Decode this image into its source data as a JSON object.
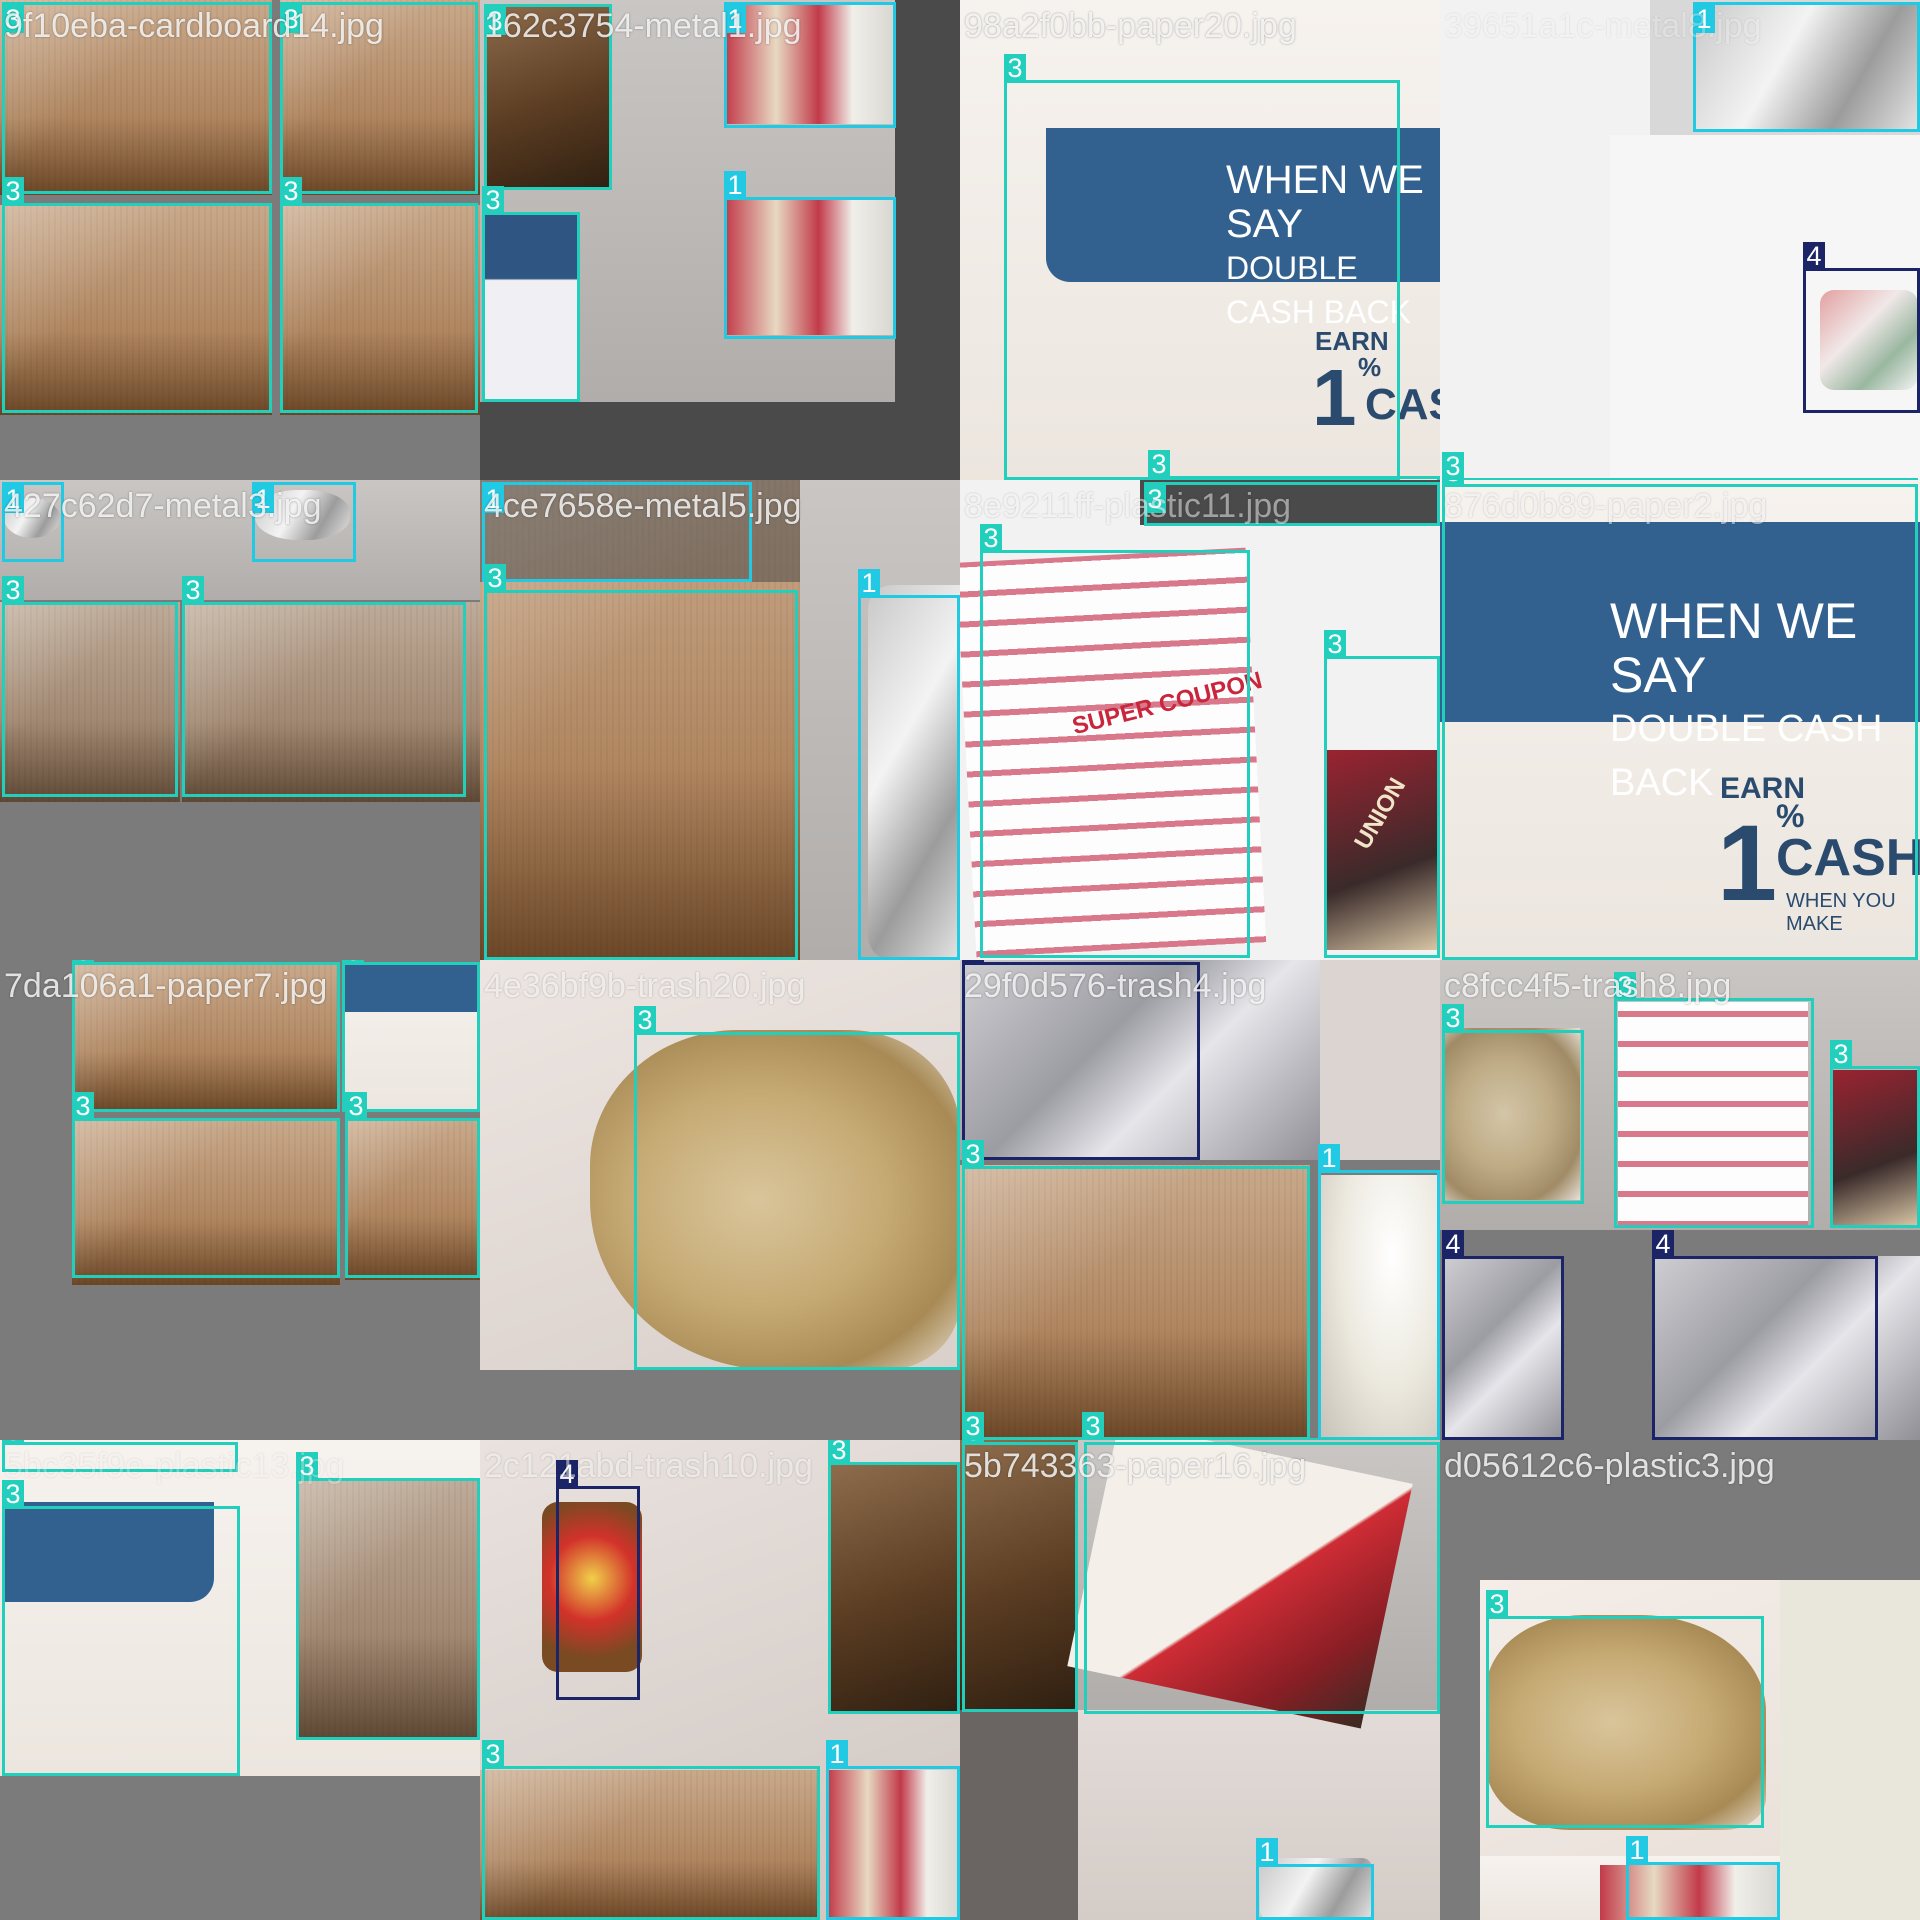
{
  "tiles": [
    {
      "title": "9f10eba-cardboard14.jpg",
      "labels": [
        "3",
        "3",
        "3",
        "3"
      ]
    },
    {
      "title": "162c3754-metal1.jpg",
      "labels": [
        "3",
        "1",
        "3",
        "1"
      ]
    },
    {
      "title": "98a2f0bb-paper20.jpg",
      "labels": [
        "3",
        "3"
      ]
    },
    {
      "title": "39651a1c-metal8.jpg",
      "labels": [
        "1",
        "4",
        "3"
      ]
    },
    {
      "title": "427c62d7-metal3.jpg",
      "labels": [
        "1",
        "1",
        "3",
        "3"
      ]
    },
    {
      "title": "4ce7658e-metal5.jpg",
      "labels": [
        "1",
        "3",
        "1"
      ]
    },
    {
      "title": "8e9211ff-plastic11.jpg",
      "labels": [
        "3",
        "3",
        "3"
      ]
    },
    {
      "title": "876d0b89-paper2.jpg",
      "labels": [
        "3"
      ]
    },
    {
      "title": "7da106a1-paper7.jpg",
      "labels": [
        "3",
        "3",
        "3",
        "3"
      ]
    },
    {
      "title": "4e36bf9b-trash20.jpg",
      "labels": [
        "3"
      ]
    },
    {
      "title": "29f0d576-trash4.jpg",
      "labels": [
        "4",
        "3",
        "1",
        "3",
        "3"
      ]
    },
    {
      "title": "c8fcc4f5-trash8.jpg",
      "labels": [
        "3",
        "3",
        "3",
        "4",
        "4"
      ]
    },
    {
      "title": "5bc35f9e-plastic13.jpg",
      "labels": [
        "3",
        "3",
        "3"
      ]
    },
    {
      "title": "2c121abd-trash10.jpg",
      "labels": [
        "4",
        "3",
        "3",
        "1"
      ]
    },
    {
      "title": "5b743363-paper16.jpg",
      "labels": [
        "3",
        "1"
      ]
    },
    {
      "title": "d05612c6-plastic3.jpg",
      "labels": [
        "3",
        "1"
      ]
    }
  ],
  "print": {
    "banner_line1": "WHEN WE SAY",
    "banner_line2": "DOUBLE CASH BACK",
    "earn": "EARN",
    "one": "1",
    "percent": "%",
    "cash": "CASH",
    "when_you": "WHEN YOU MAKE",
    "super_coupon": "SUPER COUPON",
    "union": "UNION"
  },
  "colors": {
    "class_3_box": "#22cfbd",
    "class_1_box": "#21c9e3",
    "class_4_box": "#1a2466",
    "letterbox": "#7b7b7b"
  }
}
